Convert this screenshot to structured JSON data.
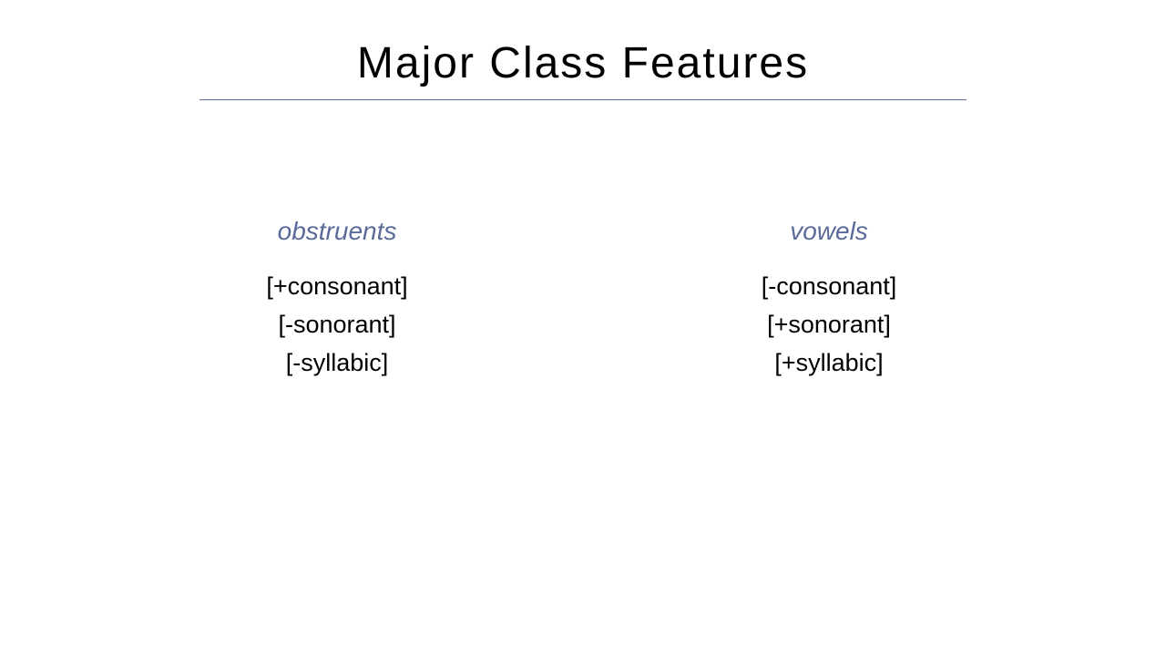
{
  "slide": {
    "title": "Major Class Features",
    "title_fontsize": 48,
    "title_color": "#000000",
    "underline_color": "#5a6b9a",
    "underline_width": 842,
    "background_color": "#ffffff",
    "columns": [
      {
        "label": "obstruents",
        "label_color": "#5a6b9a",
        "label_fontsize": 28,
        "label_style": "italic",
        "features": [
          "[+consonant]",
          "[-sonorant]",
          "[-syllabic]"
        ],
        "feature_color": "#000000",
        "feature_fontsize": 27
      },
      {
        "label": "vowels",
        "label_color": "#5a6b9a",
        "label_fontsize": 28,
        "label_style": "italic",
        "features": [
          "[-consonant]",
          "[+sonorant]",
          "[+syllabic]"
        ],
        "feature_color": "#000000",
        "feature_fontsize": 27
      }
    ]
  }
}
